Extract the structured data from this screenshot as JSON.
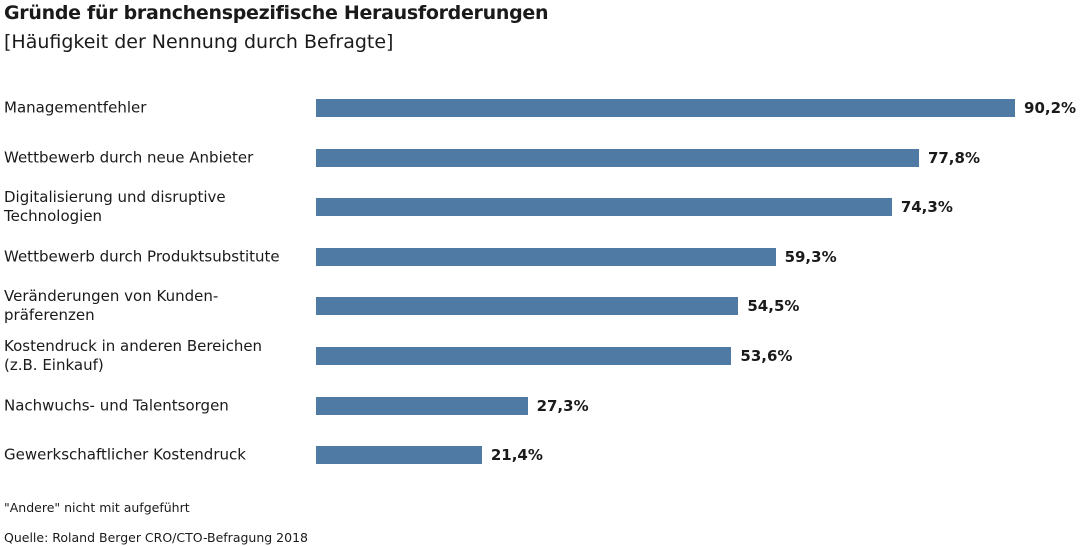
{
  "chart_data": {
    "type": "bar",
    "orientation": "horizontal",
    "title": "Gründe für branchenspezifische Herausforderungen",
    "subtitle": "[Häufigkeit der Nennung durch Befragte]",
    "categories": [
      "Managementfehler",
      "Wettbewerb durch neue Anbieter",
      "Digitalisierung und disruptive\nTechnologien",
      "Wettbewerb durch Produktsubstitute",
      "Veränderungen von Kunden-\npräferenzen",
      "Kostendruck in anderen Bereichen\n(z.B. Einkauf)",
      "Nachwuchs- und Talentsorgen",
      "Gewerkschaftlicher Kostendruck"
    ],
    "values": [
      90.2,
      77.8,
      74.3,
      59.3,
      54.5,
      53.6,
      27.3,
      21.4
    ],
    "value_labels": [
      "90,2%",
      "77,8%",
      "74,3%",
      "59,3%",
      "54,5%",
      "53,6%",
      "27,3%",
      "21,4%"
    ],
    "color": "#4e7aa3",
    "notes": [
      "\"Andere\" nicht mit aufgeführt",
      "Quelle: Roland Berger CRO/CTO-Befragung 2018"
    ]
  }
}
